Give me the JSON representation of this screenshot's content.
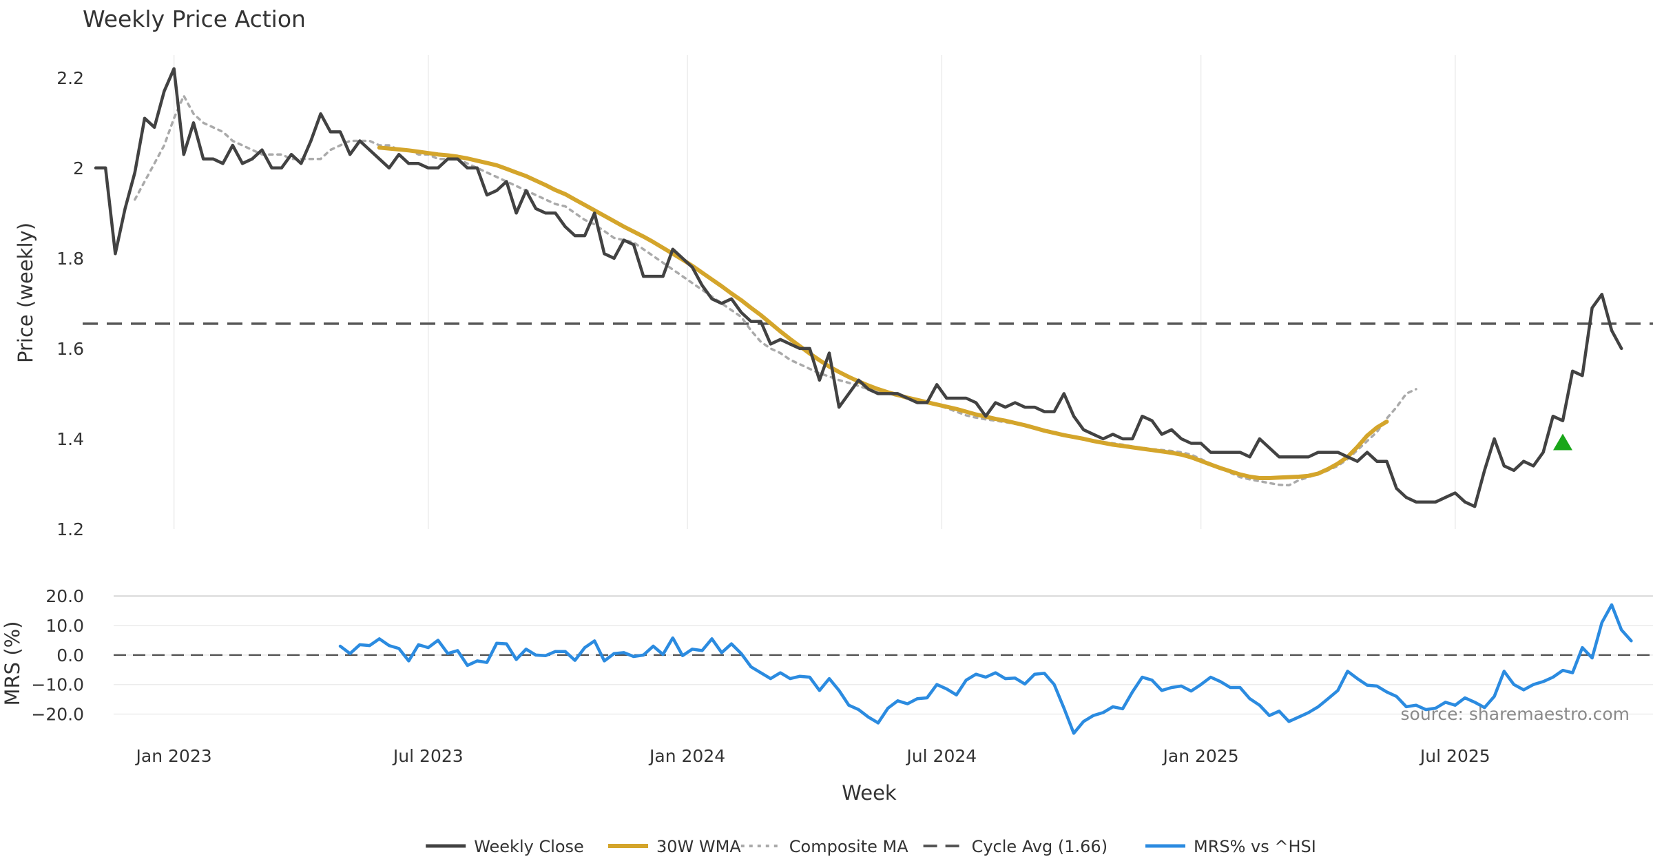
{
  "chart_data": {
    "type": "line",
    "title": "Weekly Price Action",
    "xlabel": "Week",
    "source_text": "source: sharemaestro.com",
    "x_ticks": [
      {
        "label": "Jan 2023",
        "week": 8
      },
      {
        "label": "Jul 2023",
        "week": 34
      },
      {
        "label": "Jan 2024",
        "week": 60.5
      },
      {
        "label": "Jul 2024",
        "week": 86.5
      },
      {
        "label": "Jan 2025",
        "week": 113
      },
      {
        "label": "Jul 2025",
        "week": 139
      }
    ],
    "colors": {
      "close": "#424242",
      "wma": "#d4a52b",
      "composite": "#aaaaaa",
      "cycle": "#555555",
      "mrs": "#2b8be0",
      "signal": "#1aa61a",
      "grid": "#ececec",
      "text": "#333333"
    },
    "price_panel": {
      "ylabel": "Price (weekly)",
      "ylim": [
        1.2,
        2.25
      ],
      "yticks": [
        {
          "value": 1.2,
          "label": "1.2"
        },
        {
          "value": 1.4,
          "label": "1.4"
        },
        {
          "value": 1.6,
          "label": "1.6"
        },
        {
          "value": 1.8,
          "label": "1.8"
        },
        {
          "value": 2.0,
          "label": "2"
        },
        {
          "value": 2.2,
          "label": "2.2"
        }
      ],
      "cycle_avg": 1.655,
      "signal_marker": {
        "week": 150,
        "value": 1.39,
        "shape": "triangle-up"
      },
      "series": [
        {
          "name": "Weekly Close",
          "key": "close",
          "start_week": 0,
          "values": [
            2.0,
            2.0,
            1.81,
            1.91,
            1.99,
            2.11,
            2.09,
            2.17,
            2.22,
            2.03,
            2.1,
            2.02,
            2.02,
            2.01,
            2.05,
            2.01,
            2.02,
            2.04,
            2.0,
            2.0,
            2.03,
            2.01,
            2.06,
            2.12,
            2.08,
            2.08,
            2.03,
            2.06,
            2.04,
            2.02,
            2.0,
            2.03,
            2.01,
            2.01,
            2.0,
            2.0,
            2.02,
            2.02,
            2.0,
            2.0,
            1.94,
            1.95,
            1.97,
            1.9,
            1.95,
            1.91,
            1.9,
            1.9,
            1.87,
            1.85,
            1.85,
            1.9,
            1.81,
            1.8,
            1.84,
            1.83,
            1.76,
            1.76,
            1.76,
            1.82,
            1.8,
            1.78,
            1.74,
            1.71,
            1.7,
            1.71,
            1.68,
            1.66,
            1.66,
            1.61,
            1.62,
            1.61,
            1.6,
            1.6,
            1.53,
            1.59,
            1.47,
            1.5,
            1.53,
            1.51,
            1.5,
            1.5,
            1.5,
            1.49,
            1.48,
            1.48,
            1.52,
            1.49,
            1.49,
            1.49,
            1.48,
            1.45,
            1.48,
            1.47,
            1.48,
            1.47,
            1.47,
            1.46,
            1.46,
            1.5,
            1.45,
            1.42,
            1.41,
            1.4,
            1.41,
            1.4,
            1.4,
            1.45,
            1.44,
            1.41,
            1.42,
            1.4,
            1.39,
            1.39,
            1.37,
            1.37,
            1.37,
            1.37,
            1.36,
            1.4,
            1.38,
            1.36,
            1.36,
            1.36,
            1.36,
            1.37,
            1.37,
            1.37,
            1.36,
            1.35,
            1.37,
            1.35,
            1.35,
            1.29,
            1.27,
            1.26,
            1.26,
            1.26,
            1.27,
            1.28,
            1.26,
            1.25,
            1.33,
            1.4,
            1.34,
            1.33,
            1.35,
            1.34,
            1.37,
            1.45,
            1.44,
            1.55,
            1.54,
            1.69,
            1.72,
            1.64,
            1.6
          ]
        },
        {
          "name": "30W WMA",
          "key": "wma",
          "start_week": 29,
          "values": [
            2.045,
            2.043,
            2.041,
            2.039,
            2.036,
            2.033,
            2.03,
            2.028,
            2.025,
            2.021,
            2.016,
            2.011,
            2.006,
            1.998,
            1.99,
            1.982,
            1.972,
            1.962,
            1.951,
            1.942,
            1.93,
            1.918,
            1.906,
            1.894,
            1.882,
            1.87,
            1.859,
            1.848,
            1.836,
            1.823,
            1.81,
            1.797,
            1.783,
            1.768,
            1.753,
            1.738,
            1.722,
            1.707,
            1.69,
            1.674,
            1.656,
            1.638,
            1.621,
            1.605,
            1.589,
            1.574,
            1.56,
            1.548,
            1.537,
            1.527,
            1.518,
            1.51,
            1.503,
            1.497,
            1.491,
            1.486,
            1.481,
            1.476,
            1.471,
            1.466,
            1.46,
            1.454,
            1.449,
            1.444,
            1.44,
            1.435,
            1.43,
            1.424,
            1.418,
            1.413,
            1.408,
            1.404,
            1.4,
            1.395,
            1.391,
            1.387,
            1.384,
            1.381,
            1.378,
            1.375,
            1.372,
            1.369,
            1.365,
            1.359,
            1.351,
            1.343,
            1.335,
            1.328,
            1.321,
            1.316,
            1.313,
            1.313,
            1.314,
            1.315,
            1.316,
            1.318,
            1.323,
            1.333,
            1.345,
            1.36,
            1.382,
            1.407,
            1.425,
            1.438
          ]
        },
        {
          "name": "Composite MA",
          "key": "composite",
          "start_week": 4,
          "values": [
            1.93,
            1.97,
            2.01,
            2.05,
            2.11,
            2.16,
            2.12,
            2.1,
            2.09,
            2.08,
            2.06,
            2.05,
            2.04,
            2.03,
            2.03,
            2.03,
            2.02,
            2.02,
            2.02,
            2.02,
            2.04,
            2.05,
            2.06,
            2.06,
            2.06,
            2.05,
            2.05,
            2.04,
            2.04,
            2.03,
            2.03,
            2.02,
            2.02,
            2.02,
            2.01,
            2.0,
            1.99,
            1.98,
            1.97,
            1.96,
            1.95,
            1.94,
            1.93,
            1.92,
            1.915,
            1.9,
            1.885,
            1.875,
            1.86,
            1.845,
            1.84,
            1.835,
            1.82,
            1.805,
            1.79,
            1.775,
            1.76,
            1.745,
            1.73,
            1.715,
            1.7,
            1.685,
            1.67,
            1.64,
            1.615,
            1.6,
            1.59,
            1.575,
            1.565,
            1.555,
            1.545,
            1.538,
            1.53,
            1.524,
            1.517,
            1.51,
            1.503,
            1.5,
            1.495,
            1.49,
            1.485,
            1.48,
            1.475,
            1.468,
            1.46,
            1.452,
            1.447,
            1.443,
            1.44,
            1.437,
            1.433,
            1.43,
            1.425,
            1.42,
            1.415,
            1.41,
            1.405,
            1.4,
            1.395,
            1.393,
            1.39,
            1.387,
            1.383,
            1.38,
            1.377,
            1.375,
            1.373,
            1.37,
            1.365,
            1.355,
            1.345,
            1.335,
            1.325,
            1.315,
            1.31,
            1.306,
            1.302,
            1.298,
            1.297,
            1.308,
            1.315,
            1.322,
            1.33,
            1.34,
            1.355,
            1.375,
            1.395,
            1.415,
            1.445,
            1.47,
            1.5,
            1.51
          ]
        }
      ]
    },
    "mrs_panel": {
      "ylabel": "MRS (%)",
      "ylim": [
        -25,
        24
      ],
      "yticks": [
        {
          "value": -20,
          "label": "−20.0"
        },
        {
          "value": -10,
          "label": "−10.0"
        },
        {
          "value": 0,
          "label": "0.0"
        },
        {
          "value": 10,
          "label": "10.0"
        },
        {
          "value": 20,
          "label": "20.0"
        }
      ],
      "zero_line": 0,
      "series": [
        {
          "name": "MRS% vs ^HSI",
          "key": "mrs",
          "start_week": 25,
          "values": [
            3,
            0.5,
            3.5,
            3.2,
            5.5,
            3.2,
            2.2,
            -2,
            3.5,
            2.5,
            5,
            0.5,
            1.5,
            -3.5,
            -2,
            -2.5,
            4,
            3.8,
            -1.5,
            2,
            0,
            -0.2,
            1.2,
            1.2,
            -1.8,
            2.5,
            4.8,
            -2,
            0.5,
            0.8,
            -0.5,
            0,
            3,
            0.2,
            5.8,
            -0.2,
            2,
            1.5,
            5.5,
            0.8,
            3.8,
            0.5,
            -4,
            -6,
            -8,
            -6,
            -8,
            -7.2,
            -7.5,
            -12,
            -8,
            -12,
            -17,
            -18.5,
            -21,
            -23,
            -18,
            -15.5,
            -16.5,
            -14.8,
            -14.5,
            -10,
            -11.5,
            -13.5,
            -8.5,
            -6.5,
            -7.5,
            -6,
            -8,
            -7.8,
            -9.8,
            -6.5,
            -6.2,
            -10,
            -18,
            -26.5,
            -22.5,
            -20.5,
            -19.5,
            -17.5,
            -18.2,
            -12.5,
            -7.5,
            -8.5,
            -12,
            -11,
            -10.5,
            -12.2,
            -10,
            -7.5,
            -9,
            -11,
            -11,
            -14.8,
            -17,
            -20.5,
            -19,
            -22.5,
            -21,
            -19.5,
            -17.5,
            -14.8,
            -12,
            -5.5,
            -8,
            -10.2,
            -10.5,
            -12.5,
            -14,
            -17.5,
            -17,
            -18.5,
            -18,
            -16,
            -17,
            -14.5,
            -16,
            -17.8,
            -14,
            -5.5,
            -10,
            -11.8,
            -10,
            -9,
            -7.5,
            -5.2,
            -6,
            2.5,
            -1,
            11,
            17,
            8.5,
            4.8
          ]
        }
      ]
    },
    "legend": [
      {
        "label": "Weekly Close",
        "key": "close",
        "style": "solid"
      },
      {
        "label": "30W WMA",
        "key": "wma",
        "style": "solid-thick"
      },
      {
        "label": "Composite MA",
        "key": "composite",
        "style": "dotted"
      },
      {
        "label": "Cycle Avg (1.66)",
        "key": "cycle",
        "style": "dashed"
      },
      {
        "label": "MRS% vs ^HSI",
        "key": "mrs",
        "style": "solid"
      }
    ]
  }
}
